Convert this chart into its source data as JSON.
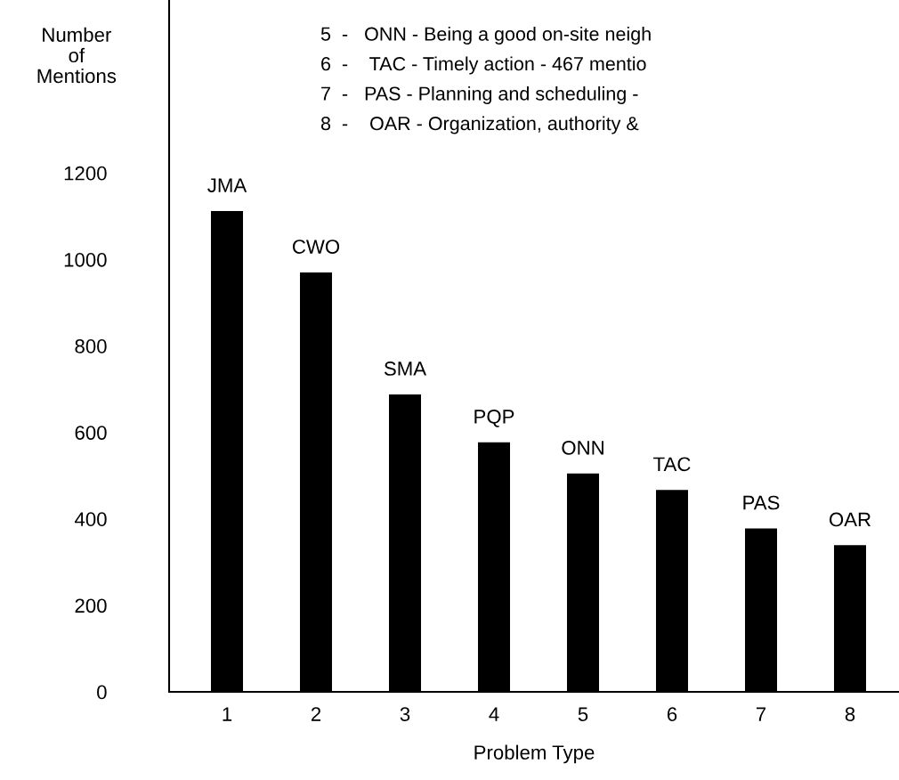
{
  "chart_data": {
    "type": "bar",
    "xlabel": "Problem Type",
    "ylabel": "Number\nof\nMentions",
    "categories": [
      "1",
      "2",
      "3",
      "4",
      "5",
      "6",
      "7",
      "8"
    ],
    "values": [
      1112,
      970,
      688,
      577,
      505,
      467,
      378,
      339
    ],
    "color": "#000000",
    "ylim": [
      0,
      1600
    ],
    "yticks": [
      0,
      200,
      400,
      600,
      800,
      1000,
      1200
    ],
    "grid": false,
    "annotations": [
      {
        "text": "JMA",
        "x": "1",
        "y": 1112
      },
      {
        "text": "CWO",
        "x": "2",
        "y": 970
      },
      {
        "text": "SMA",
        "x": "3",
        "y": 688
      },
      {
        "text": "PQP",
        "x": "4",
        "y": 577
      },
      {
        "text": "ONN",
        "x": "5",
        "y": 505
      },
      {
        "text": "TAC",
        "x": "6",
        "y": 467
      },
      {
        "text": "PAS",
        "x": "7",
        "y": 378
      },
      {
        "text": "OAR",
        "x": "8",
        "y": 339
      },
      "5  -   ONN - Being a good on-site neigh",
      "6  -    TAC - Timely action - 467 mentio",
      "7  -   PAS - Planning and scheduling - ",
      "8  -    OAR - Organization, authority &"
    ]
  }
}
